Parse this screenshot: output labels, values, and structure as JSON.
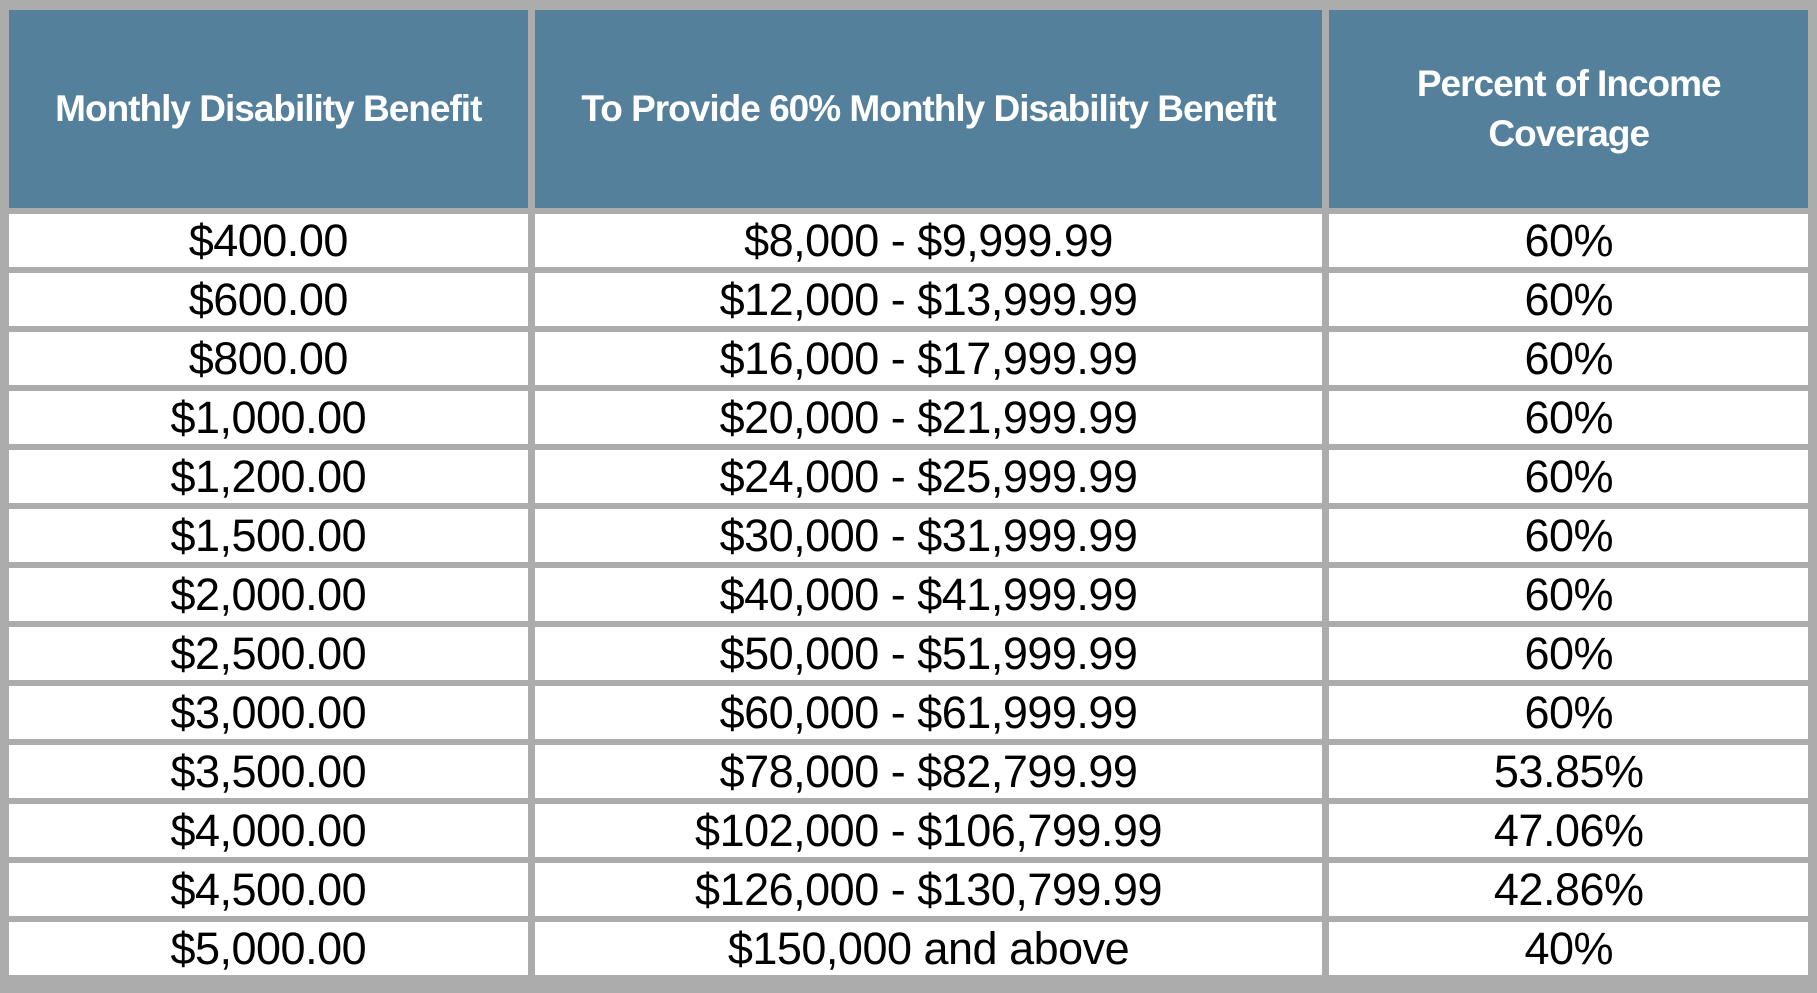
{
  "colors": {
    "header_bg": "#54809C",
    "header_text": "#FFFFFF",
    "grid": "#ACACAC",
    "cell_bg": "#FFFFFF",
    "cell_text": "#000000"
  },
  "chart_data": {
    "type": "table",
    "title": "",
    "columns": [
      "Monthly Disability Benefit",
      "To Provide 60% Monthly Disability Benefit",
      "Percent of Income Coverage"
    ],
    "rows": [
      [
        "$400.00",
        "$8,000 - $9,999.99",
        "60%"
      ],
      [
        "$600.00",
        "$12,000 - $13,999.99",
        "60%"
      ],
      [
        "$800.00",
        "$16,000 - $17,999.99",
        "60%"
      ],
      [
        "$1,000.00",
        "$20,000 - $21,999.99",
        "60%"
      ],
      [
        "$1,200.00",
        "$24,000 - $25,999.99",
        "60%"
      ],
      [
        "$1,500.00",
        "$30,000 - $31,999.99",
        "60%"
      ],
      [
        "$2,000.00",
        "$40,000 - $41,999.99",
        "60%"
      ],
      [
        "$2,500.00",
        "$50,000 - $51,999.99",
        "60%"
      ],
      [
        "$3,000.00",
        "$60,000 - $61,999.99",
        "60%"
      ],
      [
        "$3,500.00",
        "$78,000 - $82,799.99",
        "53.85%"
      ],
      [
        "$4,000.00",
        "$102,000 - $106,799.99",
        "47.06%"
      ],
      [
        "$4,500.00",
        "$126,000 - $130,799.99",
        "42.86%"
      ],
      [
        "$5,000.00",
        "$150,000 and above",
        "40%"
      ]
    ]
  }
}
